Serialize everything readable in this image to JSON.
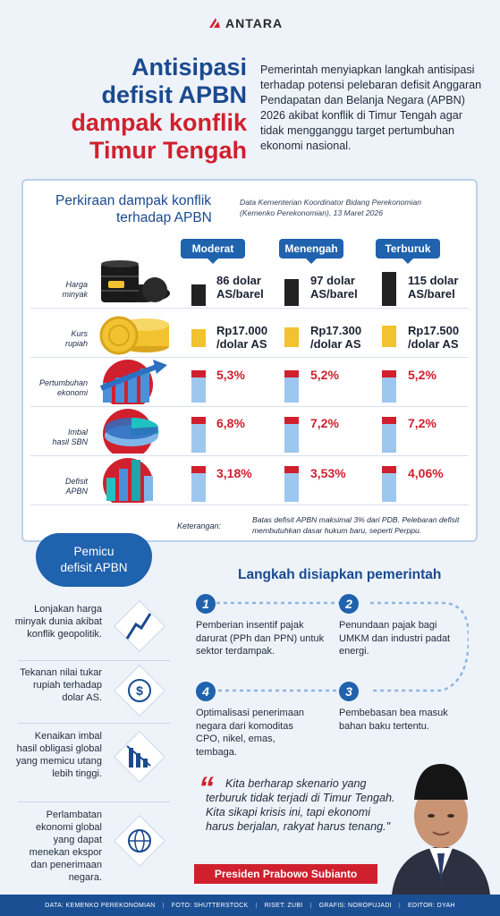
{
  "brand": {
    "name": "ANTARA"
  },
  "title": {
    "line1": "Antisipasi",
    "line2": "defisit APBN",
    "line3": "dampak konflik",
    "line4": "Timur Tengah"
  },
  "intro": "Pemerintah menyiapkan langkah antisipasi terhadap potensi pelebaran defisit Anggaran Pendapatan dan Belanja Negara (APBN) 2026 akibat konflik di Timur Tengah agar tidak mengganggu target pertumbuhan ekonomi nasional.",
  "impact": {
    "title_line1": "Perkiraan dampak konflik",
    "title_line2": "terhadap APBN",
    "source_line1": "Data Kementerian Koordinator Bidang Perekonomian",
    "source_line2": "(Kemenko Perekonomian), 13 Maret 2026",
    "scenarios": [
      "Moderat",
      "Menengah",
      "Terburuk"
    ],
    "rows": [
      {
        "label_1": "Harga",
        "label_2": "minyak",
        "values": [
          {
            "main": "86",
            "unit": "dolar",
            "sub": "AS/barel"
          },
          {
            "main": "97",
            "unit": "dolar",
            "sub": "AS/barel"
          },
          {
            "main": "115",
            "unit": "dolar",
            "sub": "AS/barel"
          }
        ]
      },
      {
        "label_1": "Kurs",
        "label_2": "rupiah",
        "values": [
          {
            "main": "Rp17.000",
            "sub": "/dolar AS"
          },
          {
            "main": "Rp17.300",
            "sub": "/dolar AS"
          },
          {
            "main": "Rp17.500",
            "sub": "/dolar AS"
          }
        ]
      },
      {
        "label_1": "Pertumbuhan",
        "label_2": "ekonomi",
        "values": [
          "5,3%",
          "5,2%",
          "5,2%"
        ]
      },
      {
        "label_1": "Imbal",
        "label_2": "hasil SBN",
        "values": [
          "6,8%",
          "7,2%",
          "7,2%"
        ]
      },
      {
        "label_1": "Defisit",
        "label_2": "APBN",
        "values": [
          "3,18%",
          "3,53%",
          "4,06%"
        ]
      }
    ],
    "note_label": "Keterangan:",
    "note_text": "Batas defisit APBN maksimal 3% dari PDB. Pelebaran defisit membutuhkan dasar hukum baru, seperti Perppu."
  },
  "triggers": {
    "title_line1": "Pemicu",
    "title_line2": "defisit APBN",
    "items": [
      "Lonjakan harga minyak dunia akibat konflik geopolitik.",
      "Tekanan nilai tukar rupiah terhadap dolar AS.",
      "Kenaikan imbal hasil obligasi global yang memicu utang lebih tinggi.",
      "Perlambatan ekonomi global yang dapat menekan ekspor dan penerimaan negara."
    ]
  },
  "steps": {
    "title": "Langkah disiapkan pemerintah",
    "items": [
      {
        "num": "1",
        "text": "Pemberian insentif pajak darurat (PPh dan PPN) untuk sektor terdampak."
      },
      {
        "num": "2",
        "text": "Penundaan pajak bagi UMKM dan industri padat energi."
      },
      {
        "num": "3",
        "text": "Pembebasan bea masuk bahan baku tertentu."
      },
      {
        "num": "4",
        "text": "Optimalisasi penerimaan negara dari komoditas CPO, nikel, emas, tembaga."
      }
    ]
  },
  "quote": {
    "text": "Kita berharap skenario yang terburuk tidak terjadi di Timur Tengah. Kita sikapi krisis ini, tapi ekonomi harus berjalan, rakyat harus tenang.\"",
    "speaker": "Presiden Prabowo Subianto"
  },
  "footer": [
    "DATA: KEMENKO PEREKONOMIAN",
    "FOTO: SHUTTERSTOCK",
    "RISET: ZUBI",
    "GRAFIS: NOROPUJADI",
    "EDITOR: DYAH"
  ],
  "colors": {
    "blue": "#1f62ad",
    "red": "#d0202e",
    "navy": "#1a4a8f",
    "gold": "#f2c230"
  }
}
